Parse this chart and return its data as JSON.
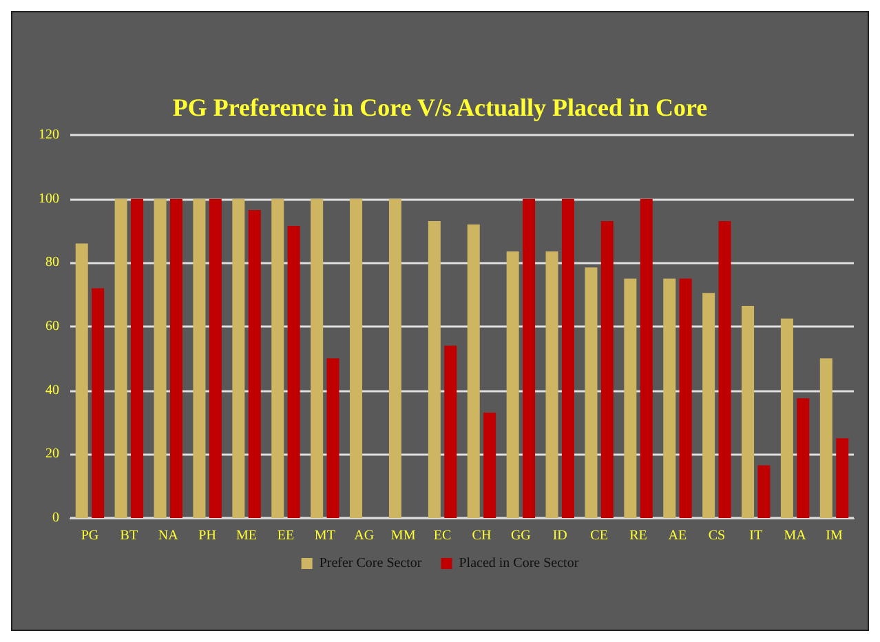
{
  "chart_data": {
    "type": "bar",
    "title": "PG Preference in Core V/s Actually Placed in Core",
    "categories": [
      "PG",
      "BT",
      "NA",
      "PH",
      "ME",
      "EE",
      "MT",
      "AG",
      "MM",
      "EC",
      "CH",
      "GG",
      "ID",
      "CE",
      "RE",
      "AE",
      "CS",
      "IT",
      "MA",
      "IM"
    ],
    "series": [
      {
        "name": "Prefer Core Sector",
        "color": "#cdb562",
        "values": [
          86,
          100,
          100,
          100,
          100,
          100,
          100,
          100,
          100,
          93,
          92,
          83.5,
          83.5,
          78.5,
          75,
          75,
          70.5,
          66.5,
          62.5,
          50
        ]
      },
      {
        "name": "Placed in Core Sector",
        "color": "#c00000",
        "values": [
          72,
          100,
          100,
          100,
          96.5,
          91.5,
          50,
          0,
          0,
          54,
          33,
          100,
          100,
          93,
          100,
          75,
          93,
          16.5,
          37.5,
          25
        ]
      }
    ],
    "ylim": [
      0,
      120
    ],
    "yticks": [
      0,
      20,
      40,
      60,
      80,
      100,
      120
    ],
    "grid": "y",
    "legend": "bottom"
  }
}
